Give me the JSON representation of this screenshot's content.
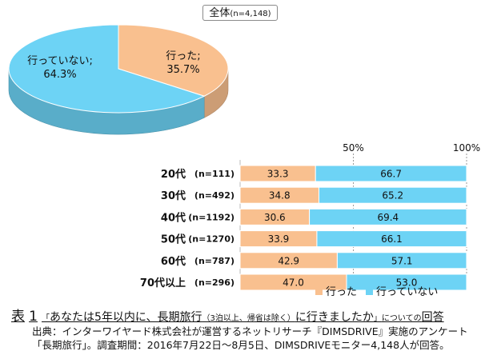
{
  "header": {
    "overall_label": "全体",
    "overall_n": "(n=4,148)"
  },
  "chart_data": [
    {
      "type": "pie",
      "slices": [
        {
          "name": "行った",
          "value": 35.7,
          "label": "行った;",
          "pct": "35.7%",
          "color": "#f9c08f"
        },
        {
          "name": "行っていない",
          "value": 64.3,
          "label": "行っていない;",
          "pct": "64.3%",
          "color": "#6dd3f5"
        }
      ]
    },
    {
      "type": "bar",
      "orientation": "horizontal",
      "stacked": true,
      "categories": [
        "20代",
        "30代",
        "40代",
        "50代",
        "60代",
        "70代以上"
      ],
      "n_labels": [
        "(n=111)",
        "(n=492)",
        "(n=1192)",
        "(n=1270)",
        "(n=787)",
        "(n=296)"
      ],
      "series": [
        {
          "name": "行った",
          "color": "#f9c08f",
          "values": [
            33.3,
            34.8,
            30.6,
            33.9,
            42.9,
            47.0
          ],
          "labels": [
            "33.3",
            "34.8",
            "30.6",
            "33.9",
            "42.9",
            "47.0"
          ]
        },
        {
          "name": "行っていない",
          "color": "#6dd3f5",
          "values": [
            66.7,
            65.2,
            69.4,
            66.1,
            57.1,
            53.0
          ],
          "labels": [
            "66.7",
            "65.2",
            "69.4",
            "66.1",
            "57.1",
            "53.0"
          ]
        }
      ],
      "xlim": [
        0,
        100
      ],
      "tick_labels": [
        "50%",
        "100%"
      ],
      "legend_position": "bottom-right",
      "grid": "vertical dotted lines at 50% and 100%"
    }
  ],
  "caption": {
    "prefix": "表",
    "number": "1",
    "open_quote": "「",
    "question_part1": "あなたは",
    "question_num": "5",
    "question_part2": "年以内に、長期旅行",
    "paren": "（3泊以上、帰省は除く）",
    "question_part3": "に行きましたか",
    "close_quote": "」",
    "suffix_small": "についての",
    "suffix": "回答"
  },
  "source": {
    "line1": "出典：インターワイヤード株式会社が運営するネットリサーチ『DIMSDRIVE』実施のアンケート",
    "line2": "「長期旅行」。調査期間：2016年7月22日～8月5日、DIMSDRIVEモニター4,148人が回答。"
  }
}
